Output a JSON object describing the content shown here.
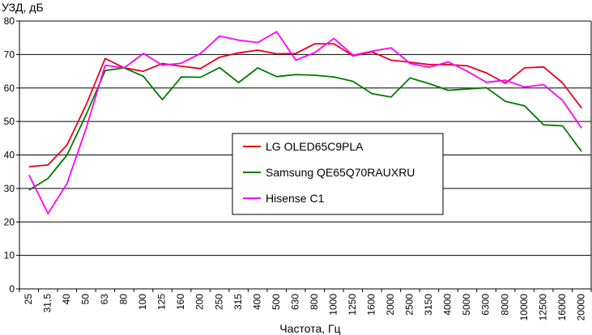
{
  "chart_data": {
    "type": "line",
    "ylabel": "УЗД, дБ",
    "xlabel": "Частота, Гц",
    "ylim": [
      0,
      80
    ],
    "yticks": [
      0,
      10,
      20,
      30,
      40,
      50,
      60,
      70,
      80
    ],
    "grid": true,
    "legend_position": "center",
    "categories": [
      "25",
      "31,5",
      "40",
      "50",
      "63",
      "80",
      "100",
      "125",
      "160",
      "200",
      "250",
      "315",
      "400",
      "500",
      "630",
      "800",
      "1000",
      "1250",
      "1600",
      "2000",
      "2500",
      "3150",
      "4000",
      "5000",
      "6300",
      "8000",
      "10000",
      "12500",
      "16000",
      "20000"
    ],
    "series": [
      {
        "name": "LG OLED65C9PLA",
        "color": "#e8001c",
        "values": [
          36.5,
          37,
          43,
          55,
          68.8,
          66,
          65,
          67.3,
          66.5,
          65.8,
          69.2,
          70.5,
          71.3,
          70.2,
          70.3,
          73.2,
          73.2,
          69.6,
          70.8,
          68.3,
          67.7,
          67,
          67,
          66.6,
          64.5,
          61.4,
          66,
          66.3,
          61.5,
          54
        ]
      },
      {
        "name": "Samsung QE65Q70RAUXRU",
        "color": "#007a00",
        "values": [
          29.5,
          33,
          40,
          52,
          65.2,
          66,
          63.5,
          56.5,
          63.3,
          63.2,
          66.1,
          61.6,
          66,
          63.4,
          64,
          63.8,
          63.3,
          62,
          58.3,
          57.3,
          63,
          61.3,
          59.3,
          59.7,
          60.1,
          56,
          54.7,
          49,
          48.7,
          41
        ]
      },
      {
        "name": "Hisense C1",
        "color": "#ff00ff",
        "values": [
          34,
          22.5,
          31.5,
          48,
          66.8,
          66,
          70.3,
          66.8,
          67.4,
          70.3,
          75.5,
          74.3,
          73.6,
          76.8,
          68.3,
          70.6,
          74.8,
          69.8,
          71,
          72,
          67.3,
          66.2,
          67.8,
          65,
          61.7,
          62.3,
          60.3,
          61,
          56.3,
          48
        ]
      }
    ]
  }
}
